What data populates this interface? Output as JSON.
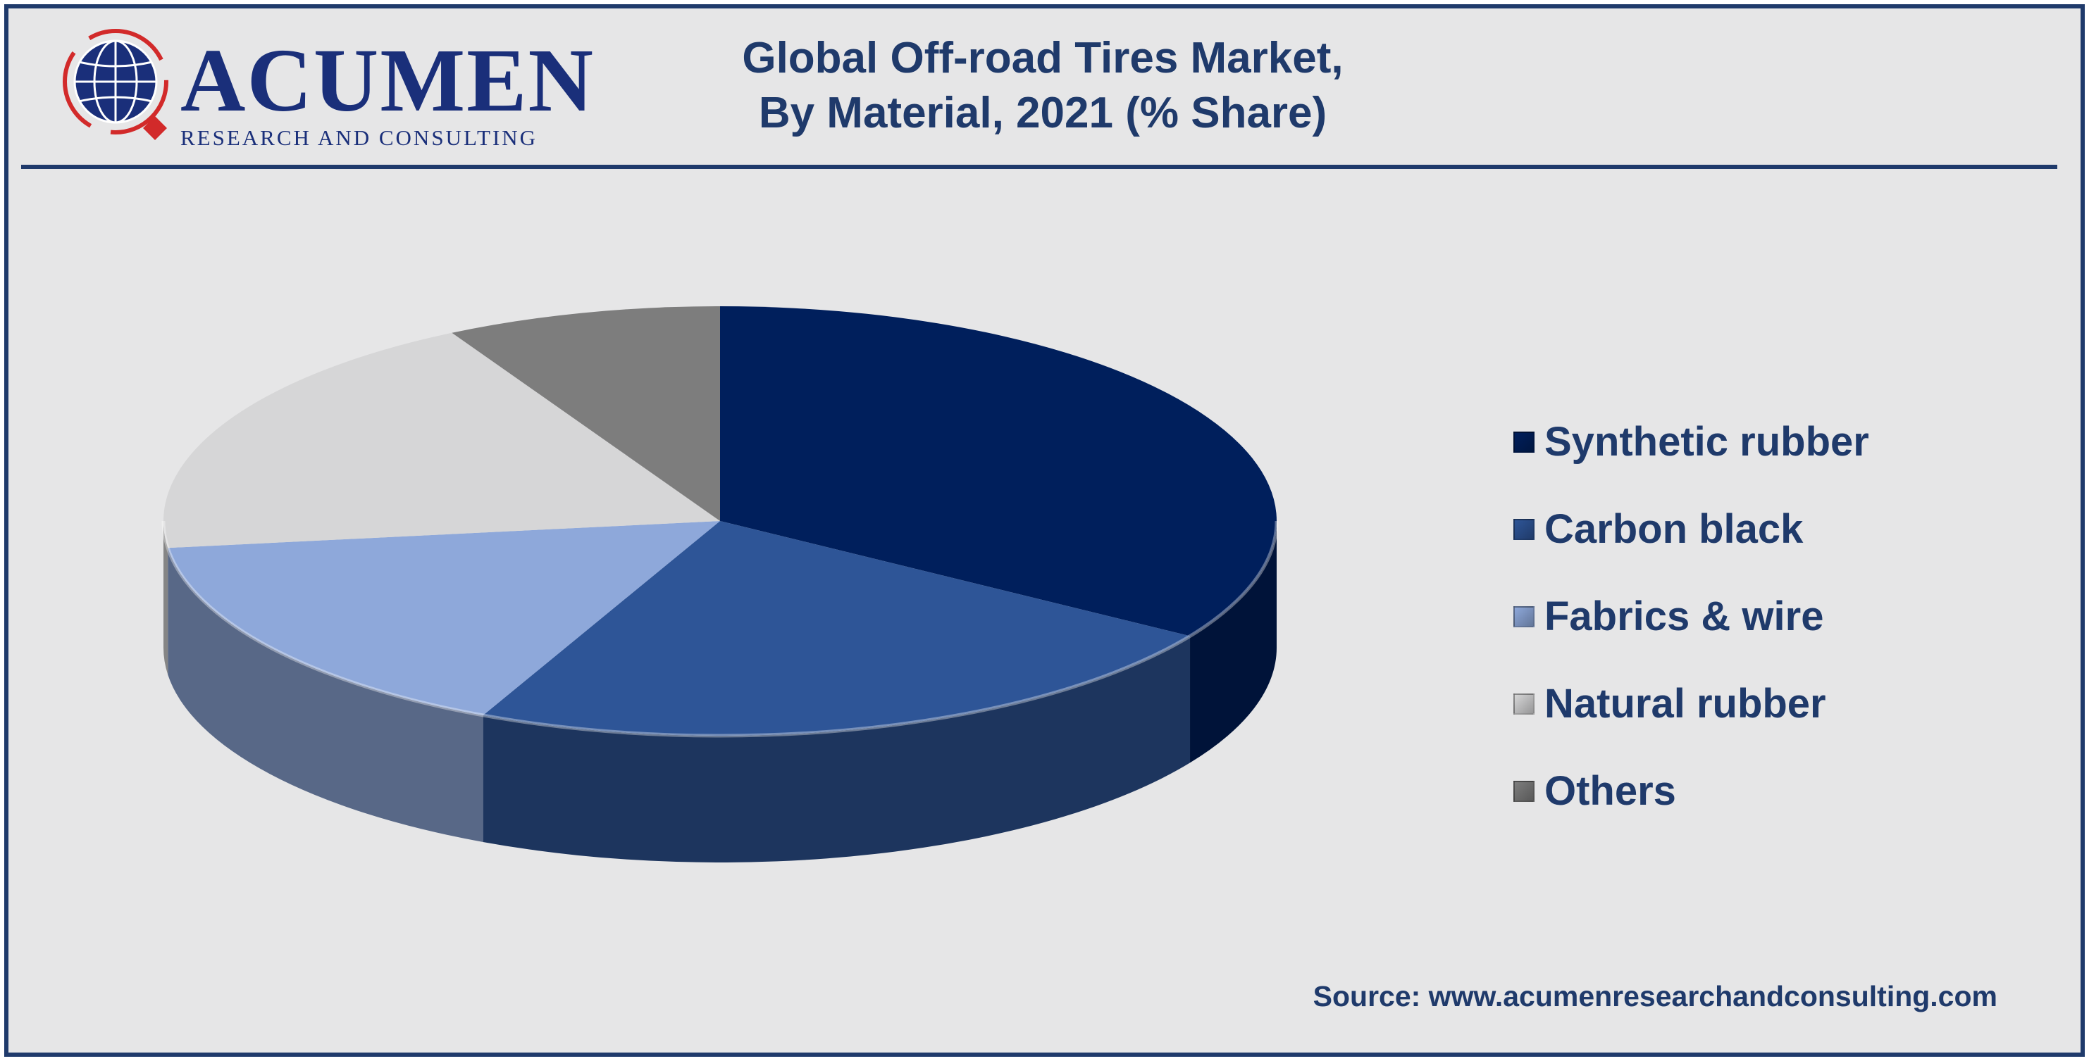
{
  "header": {
    "logo_word": "ACUMEN",
    "logo_tagline": "RESEARCH AND CONSULTING",
    "title_line1": "Global Off-road Tires Market,",
    "title_line2": "By Material, 2021 (% Share)"
  },
  "chart_data": {
    "type": "pie",
    "style": "3d-exploded-none",
    "legend_position": "right",
    "data_labels_shown": false,
    "categories": [
      "Synthetic rubber",
      "Carbon black",
      "Fabrics & wire",
      "Natural rubber",
      "Others"
    ],
    "values": [
      34,
      23,
      16,
      19,
      8
    ],
    "colors": [
      "#001f5c",
      "#2e5597",
      "#8ea8da",
      "#d6d6d7",
      "#7d7d7d"
    ]
  },
  "source": "Source: www.acumenresearchandconsulting.com"
}
